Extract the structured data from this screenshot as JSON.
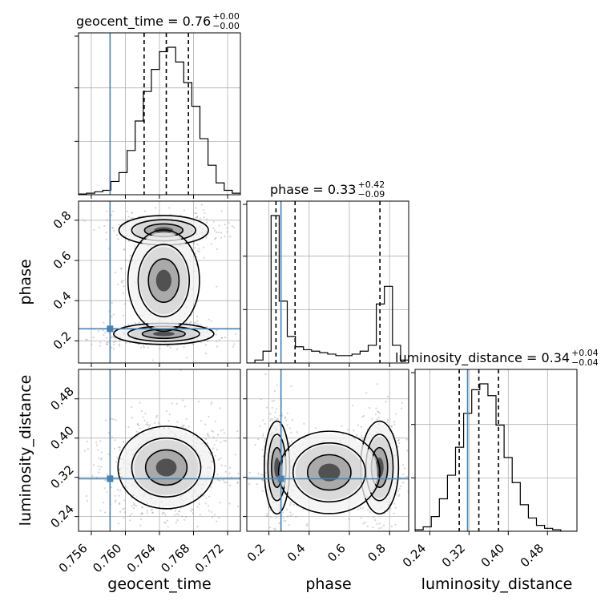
{
  "chart_data": {
    "type": "corner",
    "parameters": [
      "geocent_time",
      "phase",
      "luminosity_distance"
    ],
    "truth_color": "#4682b4",
    "truths": {
      "geocent_time": 0.7582,
      "phase": 0.26,
      "luminosity_distance": 0.317
    },
    "titles": [
      {
        "label": "geocent_time = 0.76",
        "plus": "+0.00",
        "minus": "−0.00"
      },
      {
        "label": "phase = 0.33",
        "plus": "+0.42",
        "minus": "−0.09"
      },
      {
        "label": "luminosity_distance = 0.34",
        "plus": "+0.04",
        "minus": "−0.04"
      }
    ],
    "axes": {
      "geocent_time": {
        "range": [
          0.7545,
          0.7735
        ],
        "ticks": [
          0.756,
          0.76,
          0.764,
          0.768,
          0.772
        ],
        "tick_labels": [
          "0.756",
          "0.760",
          "0.764",
          "0.768",
          "0.772"
        ]
      },
      "phase": {
        "range": [
          0.09,
          0.895
        ],
        "ticks": [
          0.2,
          0.4,
          0.6,
          0.8
        ],
        "tick_labels": [
          "0.2",
          "0.4",
          "0.6",
          "0.8"
        ]
      },
      "luminosity_distance": {
        "range": [
          0.21,
          0.54
        ],
        "ticks": [
          0.24,
          0.32,
          0.4,
          0.48
        ],
        "tick_labels": [
          "0.24",
          "0.32",
          "0.40",
          "0.48"
        ]
      }
    },
    "histograms": {
      "geocent_time": {
        "edges": [
          0.7545,
          0.75545,
          0.7564,
          0.75735,
          0.7583,
          0.75925,
          0.7602,
          0.76115,
          0.7621,
          0.76305,
          0.764,
          0.76495,
          0.7659,
          0.76685,
          0.7678,
          0.76875,
          0.7697,
          0.77065,
          0.7716,
          0.77255,
          0.7735
        ],
        "counts": [
          0.005,
          0.01,
          0.02,
          0.03,
          0.09,
          0.15,
          0.3,
          0.5,
          0.7,
          0.85,
          0.97,
          1.0,
          0.9,
          0.76,
          0.6,
          0.38,
          0.2,
          0.08,
          0.03,
          0.01
        ],
        "quantiles": [
          0.7622,
          0.7648,
          0.7674
        ]
      },
      "phase": {
        "edges": [
          0.09,
          0.1302,
          0.1705,
          0.2108,
          0.251,
          0.2912,
          0.3315,
          0.3718,
          0.412,
          0.4522,
          0.4925,
          0.5328,
          0.573,
          0.6132,
          0.6535,
          0.6938,
          0.734,
          0.7742,
          0.8145,
          0.8548,
          0.895
        ],
        "counts": [
          0.0,
          0.02,
          0.08,
          1.0,
          0.42,
          0.18,
          0.11,
          0.09,
          0.08,
          0.07,
          0.06,
          0.05,
          0.05,
          0.06,
          0.08,
          0.12,
          0.4,
          0.52,
          0.12,
          0.02
        ],
        "quantiles": [
          0.235,
          0.33,
          0.752
        ]
      },
      "luminosity_distance": {
        "edges": [
          0.21,
          0.2265,
          0.243,
          0.2595,
          0.276,
          0.2925,
          0.309,
          0.3255,
          0.342,
          0.3585,
          0.375,
          0.3915,
          0.408,
          0.4245,
          0.441,
          0.4575,
          0.474,
          0.4905,
          0.507,
          0.5235,
          0.54
        ],
        "counts": [
          0.01,
          0.03,
          0.1,
          0.22,
          0.38,
          0.57,
          0.8,
          0.96,
          1.0,
          0.92,
          0.72,
          0.5,
          0.33,
          0.18,
          0.09,
          0.04,
          0.02,
          0.01,
          0.0,
          0.0
        ],
        "quantiles": [
          0.3,
          0.34,
          0.38
        ]
      }
    }
  }
}
